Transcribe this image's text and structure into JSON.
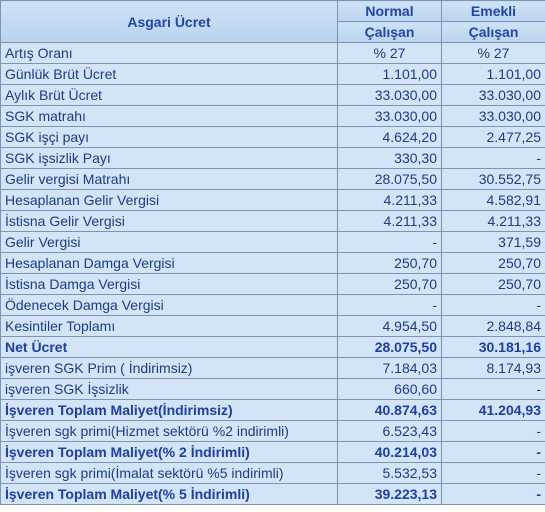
{
  "header": {
    "title": "Asgari Ücret",
    "col1_line1": "Normal",
    "col1_line2": "Çalışan",
    "col2_line1": "Emekli",
    "col2_line2": "Çalışan"
  },
  "rows": [
    {
      "label": "Artış Oranı",
      "normal": "% 27",
      "retired": "% 27"
    },
    {
      "label": "Günlük Brüt Ücret",
      "normal": "1.101,00",
      "retired": "1.101,00"
    },
    {
      "label": "Aylık Brüt Ücret",
      "normal": "33.030,00",
      "retired": "33.030,00"
    },
    {
      "label": "SGK matrahı",
      "normal": "33.030,00",
      "retired": "33.030,00"
    },
    {
      "label": "SGK işçi payı",
      "normal": "4.624,20",
      "retired": "2.477,25"
    },
    {
      "label": "SGK işsizlik Payı",
      "normal": "330,30",
      "retired": "-"
    },
    {
      "label": "Gelir vergisi Matrahı",
      "normal": "28.075,50",
      "retired": "30.552,75"
    },
    {
      "label": "Hesaplanan Gelir Vergisi",
      "normal": "4.211,33",
      "retired": "4.582,91"
    },
    {
      "label": "İstisna Gelir Vergisi",
      "normal": "4.211,33",
      "retired": "4.211,33"
    },
    {
      "label": "Gelir Vergisi",
      "normal": "-",
      "retired": "371,59"
    },
    {
      "label": "Hesaplanan Damga Vergisi",
      "normal": "250,70",
      "retired": "250,70"
    },
    {
      "label": "İstisna Damga Vergisi",
      "normal": "250,70",
      "retired": "250,70"
    },
    {
      "label": "Ödenecek Damga Vergisi",
      "normal": "-",
      "retired": "-"
    },
    {
      "label": "Kesintiler Toplamı",
      "normal": "4.954,50",
      "retired": "2.848,84"
    },
    {
      "label": "Net Ücret",
      "normal": "28.075,50",
      "retired": "30.181,16"
    },
    {
      "label": "işveren SGK Prim ( İndirimsiz)",
      "normal": "7.184,03",
      "retired": "8.174,93"
    },
    {
      "label": "işveren SGK İşsizlik",
      "normal": "660,60",
      "retired": "-"
    },
    {
      "label": "İşveren Toplam Maliyet(İndirimsiz)",
      "normal": "40.874,63",
      "retired": "41.204,93"
    },
    {
      "label": "İşveren sgk primi(Hizmet sektörü %2 indirimli)",
      "normal": "6.523,43",
      "retired": "-"
    },
    {
      "label": "İşveren Toplam Maliyet(% 2 İndirimli)",
      "normal": "40.214,03",
      "retired": "-"
    },
    {
      "label": "İşveren sgk primi(İmalat sektörü %5 indirimli)",
      "normal": "5.532,53",
      "retired": "-"
    },
    {
      "label": "İşveren Toplam Maliyet(% 5 İndirimli)",
      "normal": "39.223,13",
      "retired": "-"
    }
  ]
}
